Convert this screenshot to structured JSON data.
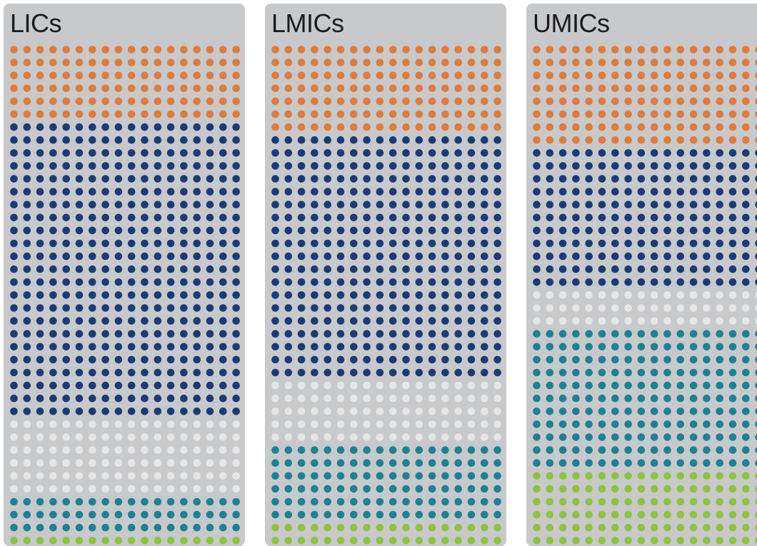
{
  "chart_data": [
    {
      "type": "waffle",
      "title": "LICs",
      "columns": 18,
      "colors_in_order_top_to_bottom": [
        "#e07b39",
        "#1a3a78",
        "#e6e6e6",
        "#1b8296",
        "#8cc43e"
      ],
      "rows_per_color": [
        6,
        23,
        6,
        3,
        1
      ],
      "rows_visible": 39
    },
    {
      "type": "waffle",
      "title": "LMICs",
      "columns": 18,
      "colors_in_order_top_to_bottom": [
        "#e07b39",
        "#1a3a78",
        "#e6e6e6",
        "#1b8296",
        "#8cc43e"
      ],
      "rows_per_color": [
        7,
        19,
        5,
        6,
        2
      ],
      "rows_visible": 39
    },
    {
      "type": "waffle",
      "title": "UMICs",
      "columns": 18,
      "colors_in_order_top_to_bottom": [
        "#e07b39",
        "#1a3a78",
        "#e6e6e6",
        "#1b8296",
        "#8cc43e"
      ],
      "rows_per_color": [
        8,
        11,
        3,
        11,
        6
      ],
      "rows_visible": 39
    }
  ]
}
